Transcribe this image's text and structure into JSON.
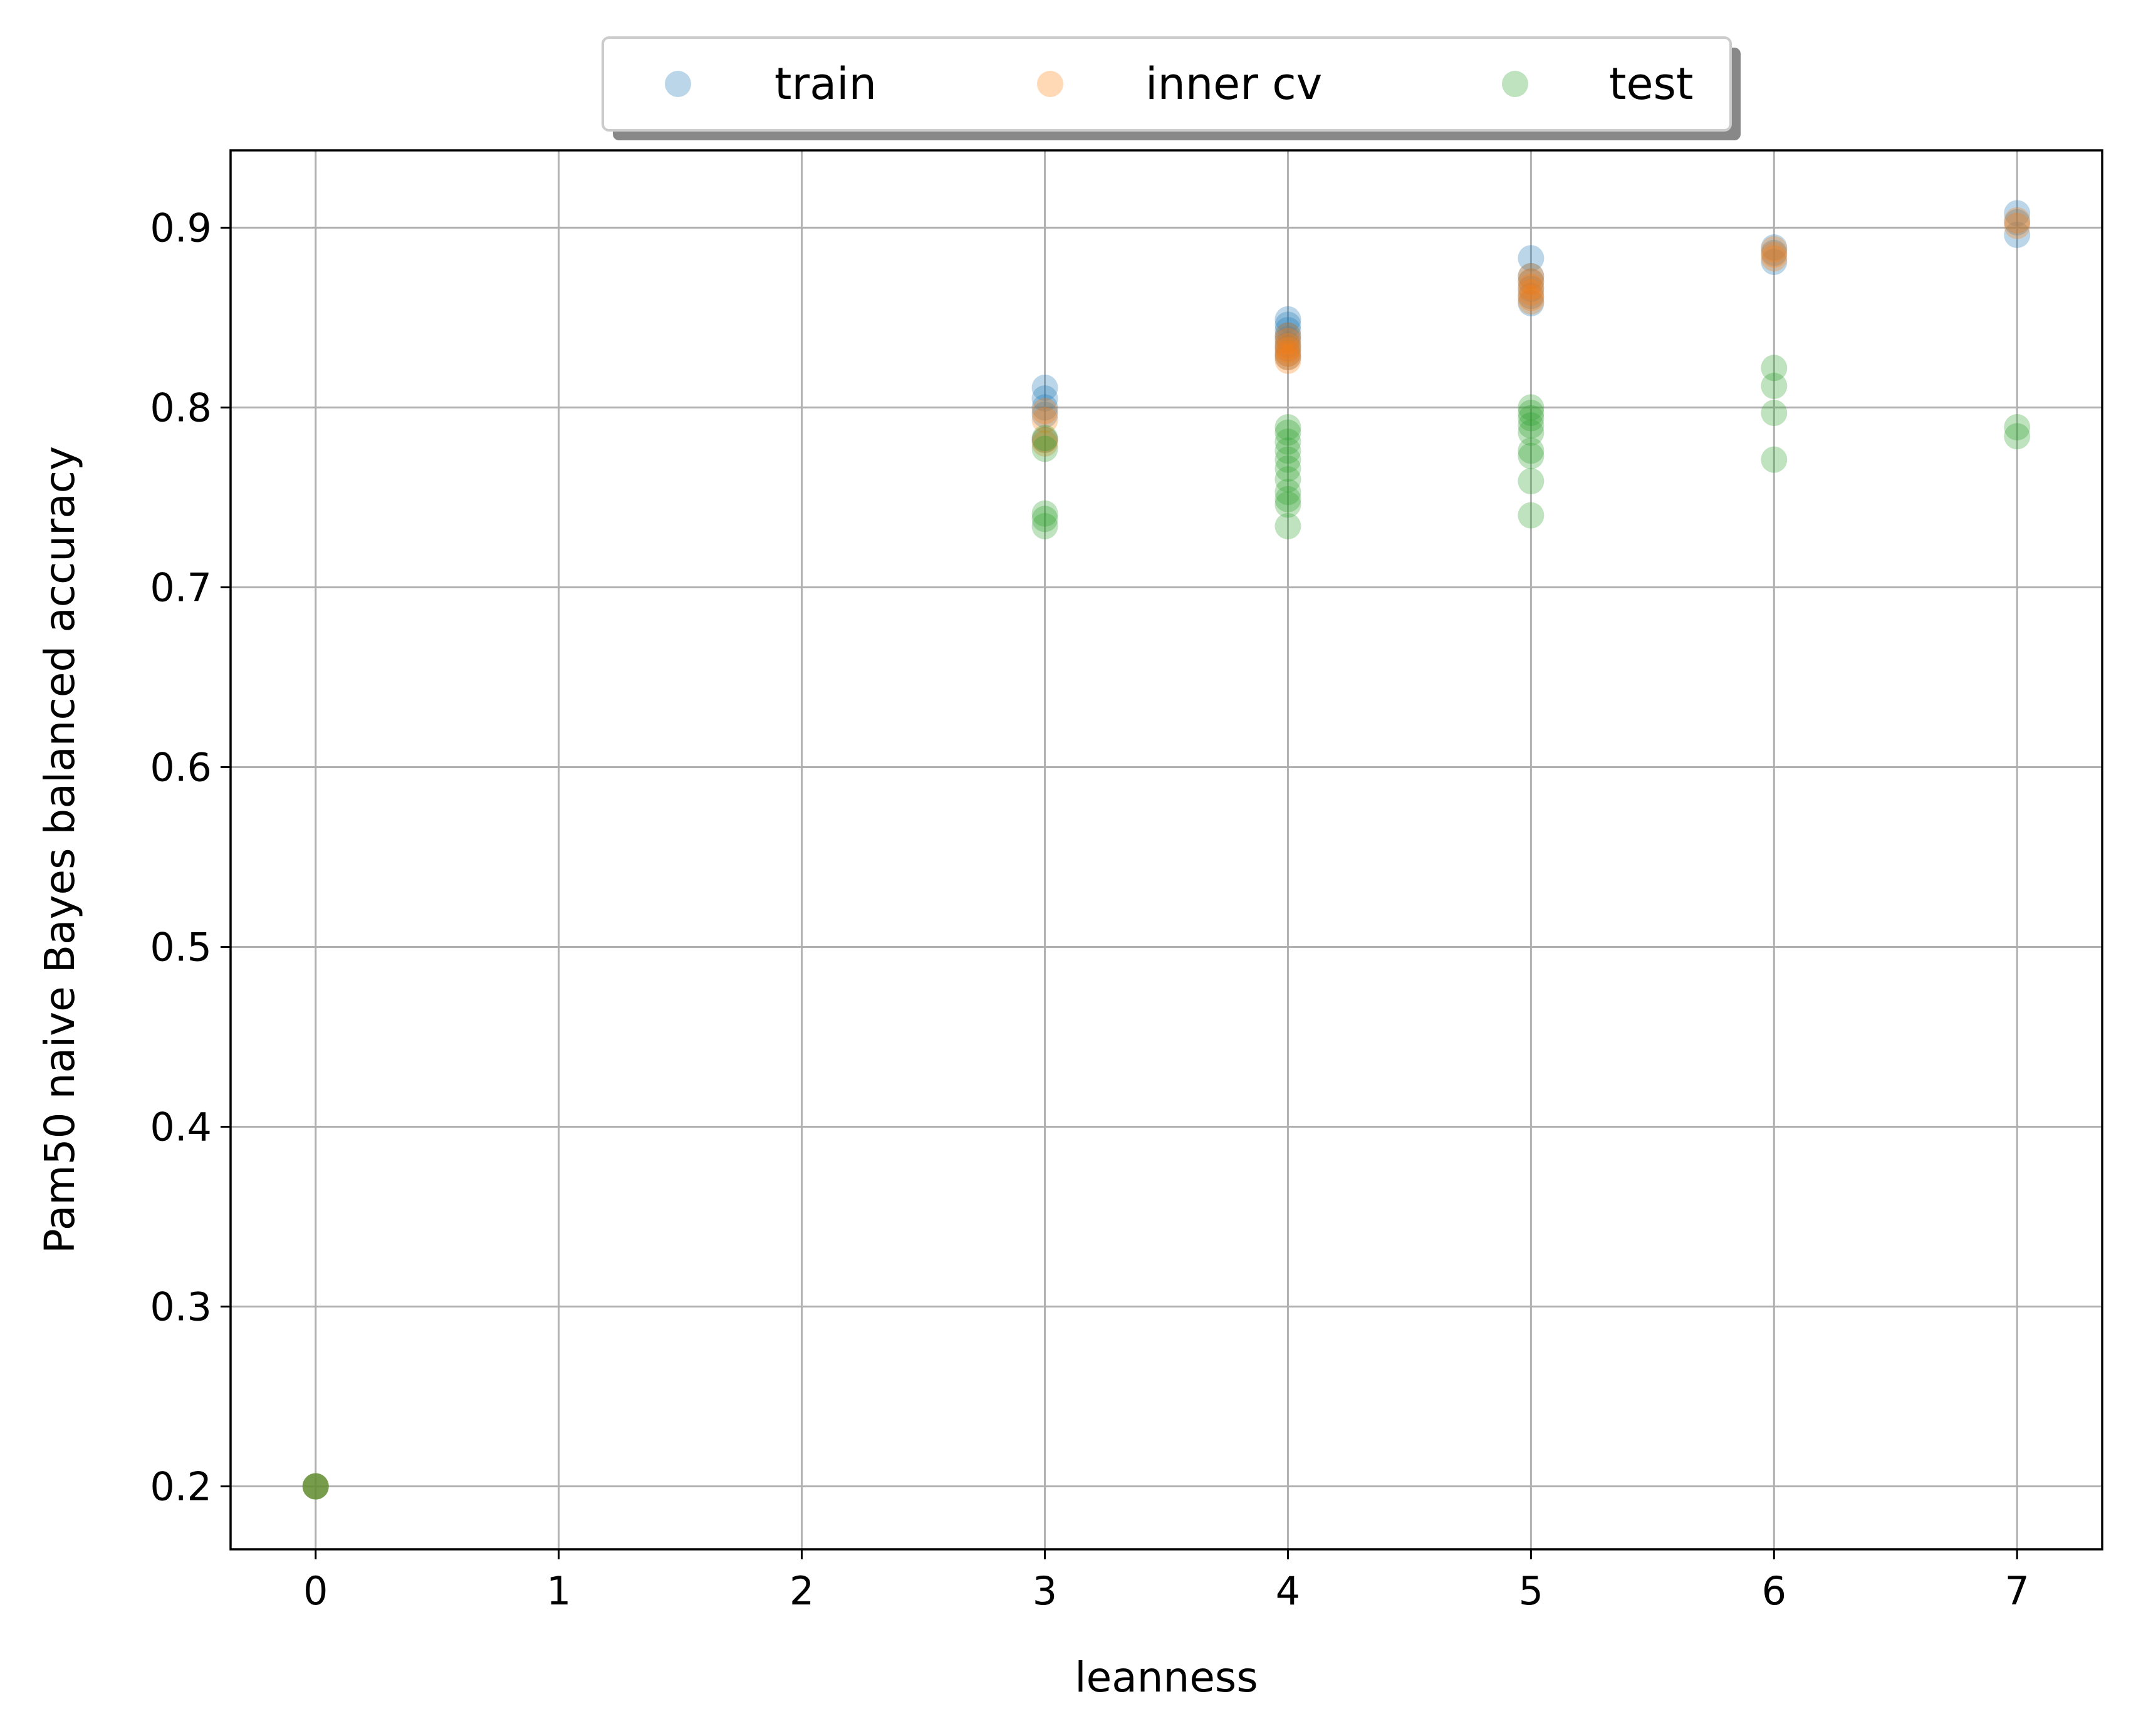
{
  "chart_data": {
    "type": "scatter",
    "xlabel": "leanness",
    "ylabel": "Pam50 naive Bayes balanced accuracy",
    "xlim": [
      -0.35,
      7.35
    ],
    "ylim": [
      0.165,
      0.943
    ],
    "xticks": [
      0,
      1,
      2,
      3,
      4,
      5,
      6,
      7
    ],
    "yticks": [
      0.2,
      0.3,
      0.4,
      0.5,
      0.6,
      0.7,
      0.8,
      0.9
    ],
    "xtick_labels": [
      "0",
      "1",
      "2",
      "3",
      "4",
      "5",
      "6",
      "7"
    ],
    "ytick_labels": [
      "0.2",
      "0.3",
      "0.4",
      "0.5",
      "0.6",
      "0.7",
      "0.8",
      "0.9"
    ],
    "grid": true,
    "legend_position": "top-center, above plot",
    "series": [
      {
        "name": "train",
        "color": "#1f77b4",
        "opacity": 0.3,
        "points": [
          [
            0,
            0.2
          ],
          [
            0,
            0.2
          ],
          [
            3,
            0.811
          ],
          [
            3,
            0.805
          ],
          [
            3,
            0.8
          ],
          [
            3,
            0.796
          ],
          [
            3,
            0.782
          ],
          [
            4,
            0.849
          ],
          [
            4,
            0.846
          ],
          [
            4,
            0.843
          ],
          [
            4,
            0.84
          ],
          [
            4,
            0.838
          ],
          [
            4,
            0.835
          ],
          [
            4,
            0.833
          ],
          [
            4,
            0.83
          ],
          [
            4,
            0.828
          ],
          [
            5,
            0.883
          ],
          [
            5,
            0.873
          ],
          [
            5,
            0.87
          ],
          [
            5,
            0.866
          ],
          [
            5,
            0.862
          ],
          [
            5,
            0.858
          ],
          [
            6,
            0.889
          ],
          [
            6,
            0.886
          ],
          [
            6,
            0.881
          ],
          [
            7,
            0.908
          ],
          [
            7,
            0.903
          ],
          [
            7,
            0.896
          ]
        ]
      },
      {
        "name": "inner cv",
        "color": "#ff7f0e",
        "opacity": 0.3,
        "points": [
          [
            0,
            0.2
          ],
          [
            0,
            0.2
          ],
          [
            3,
            0.798
          ],
          [
            3,
            0.793
          ],
          [
            3,
            0.782
          ],
          [
            3,
            0.78
          ],
          [
            4,
            0.84
          ],
          [
            4,
            0.837
          ],
          [
            4,
            0.834
          ],
          [
            4,
            0.832
          ],
          [
            4,
            0.83
          ],
          [
            4,
            0.828
          ],
          [
            4,
            0.826
          ],
          [
            5,
            0.873
          ],
          [
            5,
            0.87
          ],
          [
            5,
            0.867
          ],
          [
            5,
            0.864
          ],
          [
            5,
            0.861
          ],
          [
            5,
            0.859
          ],
          [
            6,
            0.888
          ],
          [
            6,
            0.885
          ],
          [
            6,
            0.883
          ],
          [
            7,
            0.904
          ],
          [
            7,
            0.901
          ]
        ]
      },
      {
        "name": "test",
        "color": "#2ca02c",
        "opacity": 0.3,
        "points": [
          [
            0,
            0.2
          ],
          [
            0,
            0.2
          ],
          [
            3,
            0.783
          ],
          [
            3,
            0.777
          ],
          [
            3,
            0.741
          ],
          [
            3,
            0.738
          ],
          [
            3,
            0.734
          ],
          [
            4,
            0.789
          ],
          [
            4,
            0.786
          ],
          [
            4,
            0.781
          ],
          [
            4,
            0.776
          ],
          [
            4,
            0.771
          ],
          [
            4,
            0.766
          ],
          [
            4,
            0.76
          ],
          [
            4,
            0.753
          ],
          [
            4,
            0.749
          ],
          [
            4,
            0.746
          ],
          [
            4,
            0.734
          ],
          [
            5,
            0.8
          ],
          [
            5,
            0.797
          ],
          [
            5,
            0.794
          ],
          [
            5,
            0.79
          ],
          [
            5,
            0.786
          ],
          [
            5,
            0.776
          ],
          [
            5,
            0.773
          ],
          [
            5,
            0.759
          ],
          [
            5,
            0.74
          ],
          [
            6,
            0.822
          ],
          [
            6,
            0.812
          ],
          [
            6,
            0.797
          ],
          [
            6,
            0.771
          ],
          [
            7,
            0.789
          ],
          [
            7,
            0.784
          ]
        ]
      }
    ]
  }
}
